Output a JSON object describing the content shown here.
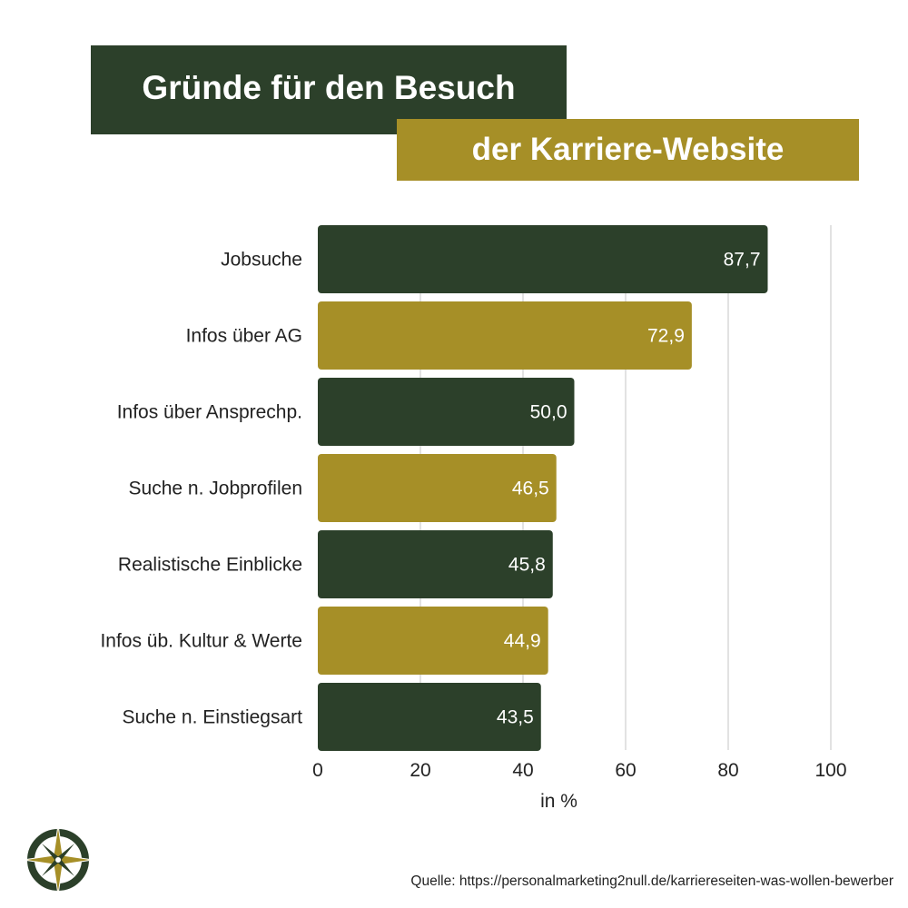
{
  "title": {
    "line1": "Gründe für den Besuch",
    "line2": "der Karriere-Website"
  },
  "colors": {
    "dark_green": "#2c402a",
    "gold": "#a68f27",
    "grid": "#d9d9d9"
  },
  "chart_data": {
    "type": "bar",
    "orientation": "horizontal",
    "categories": [
      "Jobsuche",
      "Infos über AG",
      "Infos über Ansprechp.",
      "Suche n. Jobprofilen",
      "Realistische Einblicke",
      "Infos üb. Kultur & Werte",
      "Suche n. Einstiegsart"
    ],
    "values": [
      87.7,
      72.9,
      50.0,
      46.5,
      45.8,
      44.9,
      43.5
    ],
    "data_labels": [
      "87,7",
      "72,9",
      "50,0",
      "46,5",
      "45,8",
      "44,9",
      "43,5"
    ],
    "bar_colors": [
      "#2c402a",
      "#a68f27",
      "#2c402a",
      "#a68f27",
      "#2c402a",
      "#a68f27",
      "#2c402a"
    ],
    "xlabel": "in %",
    "xlim": [
      0,
      100
    ],
    "xticks": [
      0,
      20,
      40,
      60,
      80,
      100
    ],
    "grid": "vertical"
  },
  "source": "Quelle: https://personalmarketing2null.de/karriereseiten-was-wollen-bewerber",
  "logo": {
    "icon": "compass-rose-icon"
  }
}
